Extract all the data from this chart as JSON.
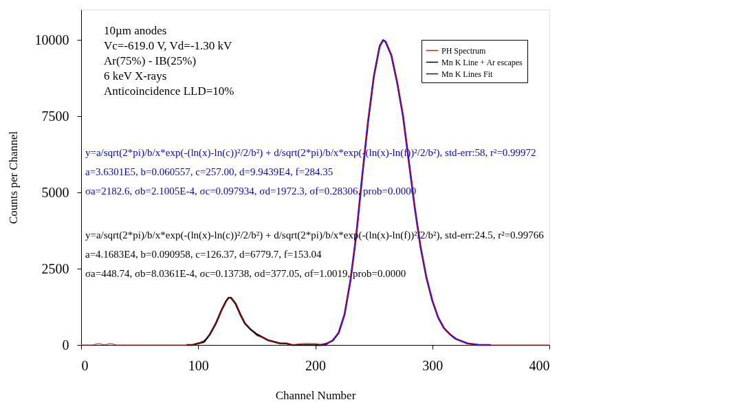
{
  "chart_data": {
    "type": "line",
    "xlabel": "Channel Number",
    "ylabel": "Counts per Channel",
    "xlim": [
      0,
      400
    ],
    "ylim": [
      0,
      11000
    ],
    "xticks": [
      0,
      100,
      200,
      300,
      400
    ],
    "yticks": [
      0,
      2500,
      5000,
      7500,
      10000
    ],
    "grid": false,
    "legend": "top right",
    "line_style": "solid",
    "marker": "none",
    "series": [
      {
        "name": "PH Spectrum",
        "color": "#ff0000",
        "x": [
          0,
          10,
          15,
          20,
          25,
          30,
          40,
          60,
          80,
          90,
          95,
          100,
          105,
          110,
          115,
          120,
          124,
          126,
          128,
          132,
          136,
          140,
          145,
          150,
          155,
          160,
          165,
          170,
          175,
          180,
          190,
          200,
          205,
          210,
          215,
          220,
          225,
          230,
          235,
          240,
          245,
          250,
          255,
          258,
          260,
          265,
          270,
          275,
          280,
          285,
          290,
          295,
          300,
          305,
          310,
          315,
          320,
          330,
          340,
          350,
          370,
          400
        ],
        "values": [
          0,
          0,
          50,
          0,
          50,
          0,
          0,
          0,
          0,
          0,
          0,
          50,
          150,
          350,
          700,
          1150,
          1450,
          1550,
          1550,
          1350,
          1000,
          700,
          500,
          300,
          250,
          150,
          100,
          50,
          50,
          0,
          50,
          50,
          0,
          50,
          150,
          400,
          1000,
          2100,
          3600,
          5500,
          7350,
          8800,
          9800,
          10000,
          9950,
          9500,
          8600,
          7500,
          6000,
          4500,
          3200,
          2200,
          1450,
          900,
          550,
          350,
          200,
          50,
          0,
          0,
          0,
          0
        ]
      },
      {
        "name": "Mn K Line + Ar escapes",
        "color": "#000000",
        "x": [
          90,
          95,
          100,
          105,
          110,
          115,
          120,
          124,
          126,
          128,
          132,
          136,
          140,
          145,
          150,
          155,
          160,
          165,
          170,
          175,
          180,
          190,
          200,
          210
        ],
        "values": [
          0,
          0,
          50,
          100,
          350,
          700,
          1150,
          1450,
          1550,
          1550,
          1350,
          1000,
          700,
          500,
          350,
          250,
          150,
          100,
          50,
          50,
          0,
          0,
          0,
          0
        ]
      },
      {
        "name": "Mn K Lines Fit",
        "color": "#0000ff",
        "x": [
          200,
          205,
          210,
          215,
          220,
          225,
          230,
          235,
          240,
          245,
          250,
          255,
          258,
          260,
          265,
          270,
          275,
          280,
          285,
          290,
          295,
          300,
          305,
          310,
          315,
          320,
          330,
          340,
          350
        ],
        "values": [
          0,
          0,
          50,
          150,
          400,
          1000,
          2100,
          3600,
          5500,
          7300,
          8800,
          9800,
          10000,
          9950,
          9500,
          8600,
          7500,
          6000,
          4500,
          3200,
          2200,
          1450,
          900,
          550,
          350,
          200,
          50,
          0,
          0
        ]
      }
    ],
    "annotations": [
      "10µm anodes",
      "Vc=-619.0 V, Vd=-1.30 kV",
      "Ar(75%) - IB(25%)",
      "6 keV X-rays",
      "Anticoincidence LLD=10%",
      "y=a/sqrt(2*pi)/b/x*exp(-(ln(x)-ln(c))²/2/b²) + d/sqrt(2*pi)/b/x*exp(-(ln(x)-ln(f))²/2/b²), std-err:58, r²=0.99972",
      "a=3.6301E5, b=0.060557, c=257.00, d=9.9439E4, f=284.35",
      "σa=2182.6, σb=2.1005E-4, σc=0.097934, σd=1972.3, σf=0.28306, prob=0.0000",
      "y=a/sqrt(2*pi)/b/x*exp(-(ln(x)-ln(c))²/2/b²) + d/sqrt(2*pi)/b/x*exp(-(ln(x)-ln(f))²/2/b²), std-err:24.5, r²=0.99766",
      "a=4.1683E4, b=0.090958, c=126.37, d=6779.7, f=153.04",
      "σa=448.74, σb=8.0361E-4, σc=0.13738, σd=377.05, σf=1.0019, prob=0.0000"
    ]
  }
}
